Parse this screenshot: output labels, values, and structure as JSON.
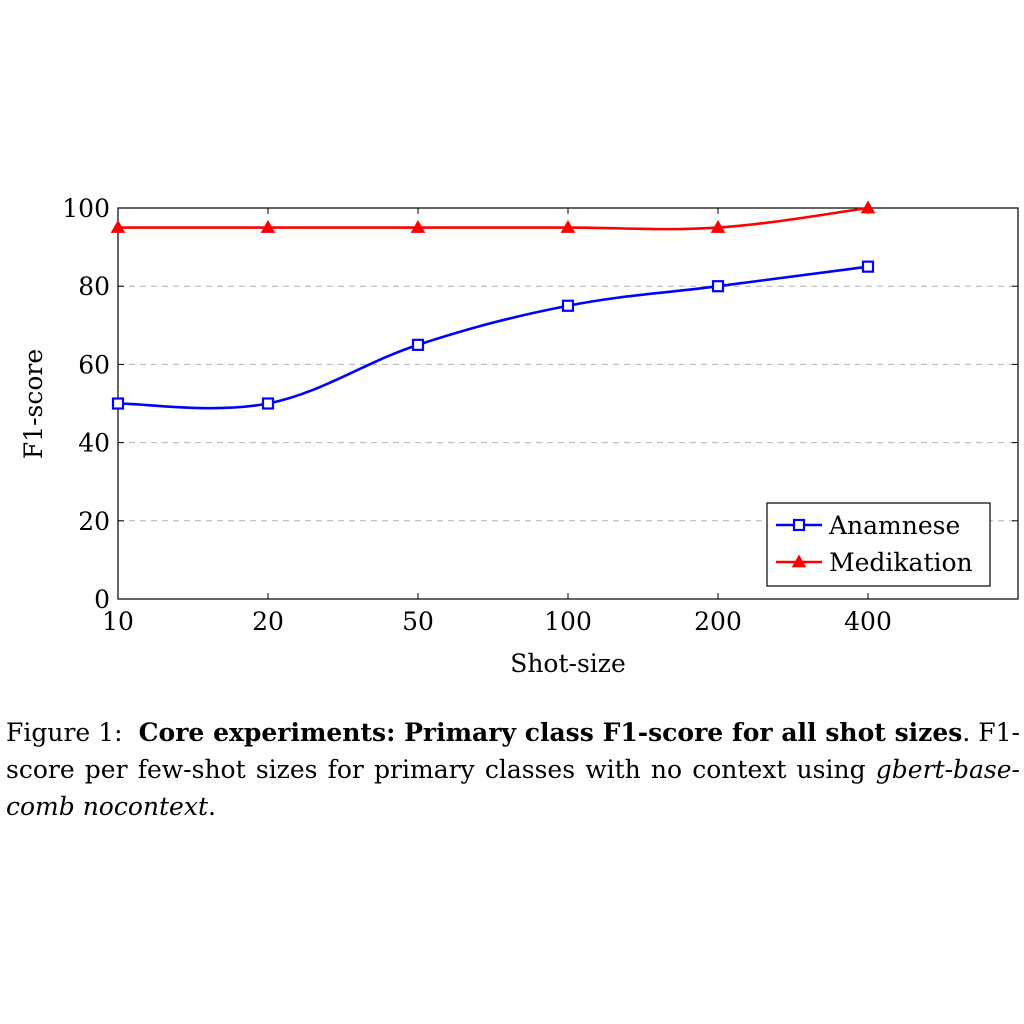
{
  "chart_data": {
    "type": "line",
    "xlabel": "Shot-size",
    "ylabel": "F1-score",
    "categories": [
      "10",
      "20",
      "50",
      "100",
      "200",
      "400"
    ],
    "ylim": [
      0,
      100
    ],
    "yticks": [
      0,
      20,
      40,
      60,
      80,
      100
    ],
    "grid": "horizontal-dashed",
    "legend_position": "bottom-right",
    "series": [
      {
        "name": "Anamnese",
        "values": [
          50,
          50,
          65,
          75,
          80,
          85
        ],
        "color": "#0000ff",
        "marker": "square-open"
      },
      {
        "name": "Medikation",
        "values": [
          95,
          95,
          95,
          95,
          95,
          100
        ],
        "color": "#ff0000",
        "marker": "triangle-filled"
      }
    ]
  },
  "caption": {
    "prefix": "Figure 1:",
    "bold": "Core experiments: Primary class F1-score for all shot sizes",
    "body": ". F1-score per few-shot sizes for primary classes with no context using ",
    "model": "gbert-base-comb nocontext",
    "end": "."
  }
}
